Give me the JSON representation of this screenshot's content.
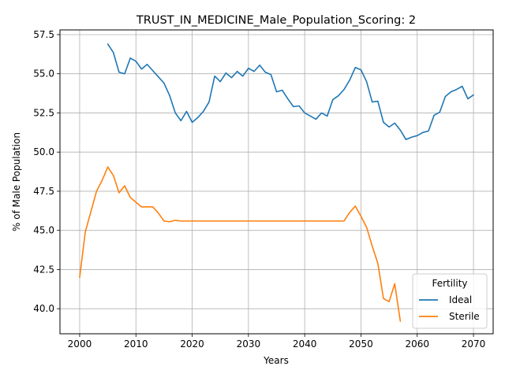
{
  "chart_data": {
    "type": "line",
    "title": "TRUST_IN_MEDICINE_Male_Population_Scoring: 2",
    "xlabel": "Years",
    "ylabel": "% of Male Population",
    "xlim": [
      1996.5,
      2073.5
    ],
    "ylim": [
      38.4,
      57.8
    ],
    "xticks": [
      2000,
      2010,
      2020,
      2030,
      2040,
      2050,
      2060,
      2070
    ],
    "xtick_labels": [
      "2000",
      "2010",
      "2020",
      "2030",
      "2040",
      "2050",
      "2060",
      "2070"
    ],
    "yticks": [
      40.0,
      42.5,
      45.0,
      47.5,
      50.0,
      52.5,
      55.0,
      57.5
    ],
    "ytick_labels": [
      "40.0",
      "42.5",
      "45.0",
      "47.5",
      "50.0",
      "52.5",
      "55.0",
      "57.5"
    ],
    "grid": true,
    "legend": {
      "title": "Fertility",
      "placement": "lower-right"
    },
    "series": [
      {
        "name": "Ideal",
        "color": "#1f77b4",
        "x": [
          2005,
          2006,
          2007,
          2008,
          2009,
          2010,
          2011,
          2012,
          2013,
          2014,
          2015,
          2016,
          2017,
          2018,
          2019,
          2020,
          2021,
          2022,
          2023,
          2024,
          2025,
          2026,
          2027,
          2028,
          2029,
          2030,
          2031,
          2032,
          2033,
          2034,
          2035,
          2036,
          2037,
          2038,
          2039,
          2040,
          2041,
          2042,
          2043,
          2044,
          2045,
          2046,
          2047,
          2048,
          2049,
          2050,
          2051,
          2052,
          2053,
          2054,
          2055,
          2056,
          2057,
          2058,
          2059,
          2060,
          2061,
          2062,
          2063,
          2064,
          2065,
          2066,
          2067,
          2068,
          2069,
          2070
        ],
        "y": [
          56.9,
          56.35,
          55.1,
          55.0,
          56.0,
          55.8,
          55.3,
          55.6,
          55.2,
          54.8,
          54.4,
          53.6,
          52.5,
          52.0,
          52.6,
          51.9,
          52.2,
          52.6,
          53.2,
          54.85,
          54.5,
          55.05,
          54.75,
          55.15,
          54.85,
          55.35,
          55.15,
          55.55,
          55.1,
          54.95,
          53.85,
          53.95,
          53.4,
          52.9,
          52.95,
          52.5,
          52.3,
          52.1,
          52.5,
          52.3,
          53.35,
          53.6,
          54.0,
          54.6,
          55.4,
          55.25,
          54.5,
          53.2,
          53.25,
          51.9,
          51.6,
          51.85,
          51.4,
          50.8,
          50.95,
          51.05,
          51.25,
          51.35,
          52.35,
          52.55,
          53.55,
          53.85,
          54.0,
          54.2,
          53.4,
          53.65
        ]
      },
      {
        "name": "Sterile",
        "color": "#ff7f0e",
        "x": [
          2000,
          2001,
          2002,
          2003,
          2004,
          2005,
          2006,
          2007,
          2008,
          2009,
          2010,
          2011,
          2012,
          2013,
          2014,
          2015,
          2016,
          2017,
          2018,
          2019,
          2020,
          2021,
          2022,
          2023,
          2024,
          2025,
          2026,
          2027,
          2028,
          2029,
          2030,
          2031,
          2032,
          2033,
          2034,
          2035,
          2036,
          2037,
          2038,
          2039,
          2040,
          2041,
          2042,
          2043,
          2044,
          2045,
          2046,
          2047,
          2048,
          2049,
          2050,
          2051,
          2052,
          2053,
          2054,
          2055,
          2056,
          2057
        ],
        "y": [
          42.0,
          44.9,
          46.2,
          47.5,
          48.2,
          49.05,
          48.5,
          47.4,
          47.85,
          47.1,
          46.8,
          46.5,
          46.5,
          46.5,
          46.1,
          45.6,
          45.55,
          45.65,
          45.6,
          45.6,
          45.6,
          45.6,
          45.6,
          45.6,
          45.6,
          45.6,
          45.6,
          45.6,
          45.6,
          45.6,
          45.6,
          45.6,
          45.6,
          45.6,
          45.6,
          45.6,
          45.6,
          45.6,
          45.6,
          45.6,
          45.6,
          45.6,
          45.6,
          45.6,
          45.6,
          45.6,
          45.6,
          45.6,
          46.15,
          46.55,
          45.9,
          45.2,
          44.0,
          42.9,
          40.65,
          40.45,
          41.6,
          39.2
        ]
      }
    ]
  }
}
